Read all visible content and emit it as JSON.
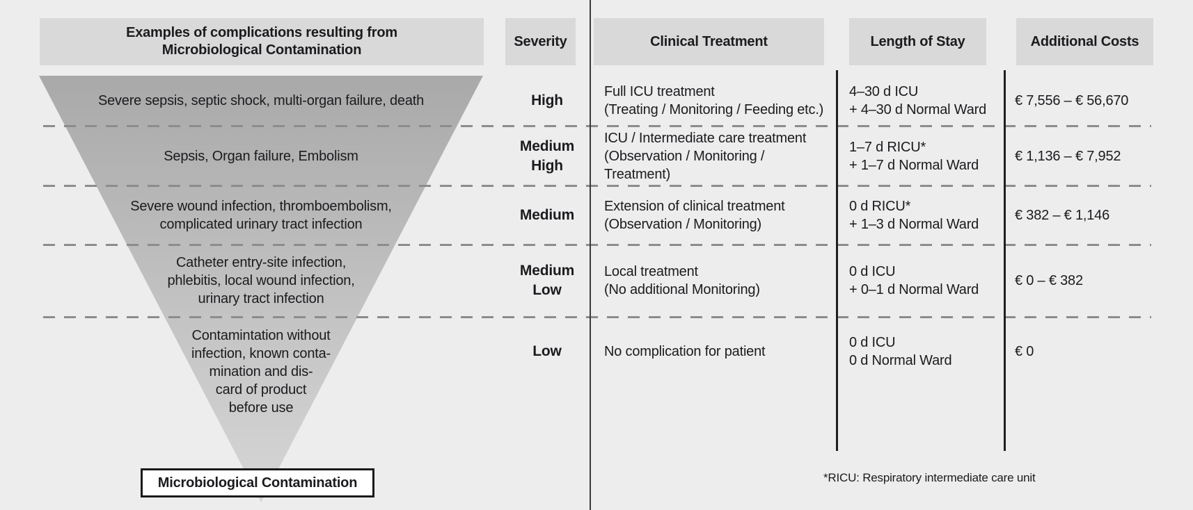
{
  "colors": {
    "background": "#ededed",
    "header_box": "#d9d9d9",
    "funnel_top": "#a9a9a9",
    "funnel_bottom": "#d6d6d6",
    "text": "#1b1b1f",
    "dashed_line": "#8c8c8c",
    "solid_line": "#1a1a1a",
    "label_box_fill": "#ffffff"
  },
  "headers": {
    "examples": "Examples of complications resulting from\nMicrobiological Contamination",
    "severity": "Severity",
    "clinical_treatment": "Clinical Treatment",
    "length_of_stay": "Length of Stay",
    "additional_costs": "Additional Costs"
  },
  "rows": [
    {
      "example": "Severe sepsis, septic shock, multi-organ failure, death",
      "severity": "High",
      "treatment": [
        "Full ICU treatment",
        "(Treating / Monitoring / Feeding etc.)"
      ],
      "stay": [
        "4–30 d ICU",
        "+ 4–30 d Normal Ward"
      ],
      "costs": "€ 7,556 – € 56,670"
    },
    {
      "example": "Sepsis, Organ failure, Embolism",
      "severity": "Medium\nHigh",
      "treatment": [
        "ICU / Intermediate care treatment",
        "(Observation / Monitoring / Treatment)"
      ],
      "stay": [
        "1–7 d RICU*",
        "+ 1–7 d Normal Ward"
      ],
      "costs": "€ 1,136 – € 7,952"
    },
    {
      "example": "Severe wound infection, thromboembolism,\ncomplicated urinary tract infection",
      "severity": "Medium",
      "treatment": [
        "Extension of clinical treatment",
        "(Observation / Monitoring)"
      ],
      "stay": [
        "0 d RICU*",
        "+ 1–3 d Normal Ward"
      ],
      "costs": "€ 382 – € 1,146"
    },
    {
      "example": "Catheter entry-site infection,\nphlebitis, local wound infection,\nurinary tract infection",
      "severity": "Medium\nLow",
      "treatment": [
        "Local treatment",
        "(No additional Monitoring)"
      ],
      "stay": [
        "0 d ICU",
        "+ 0–1 d Normal Ward"
      ],
      "costs": "€ 0 – € 382"
    },
    {
      "example": "Contamintation without\ninfection, known conta-\nmination and dis-\ncard of product\nbefore use",
      "severity": "Low",
      "treatment": [
        "No complication for patient",
        ""
      ],
      "stay": [
        "0 d ICU",
        "0 d Normal Ward"
      ],
      "costs": "€ 0"
    }
  ],
  "funnel": {
    "label": "Microbiological Contamination"
  },
  "footnote": "*RICU: Respiratory intermediate care unit"
}
